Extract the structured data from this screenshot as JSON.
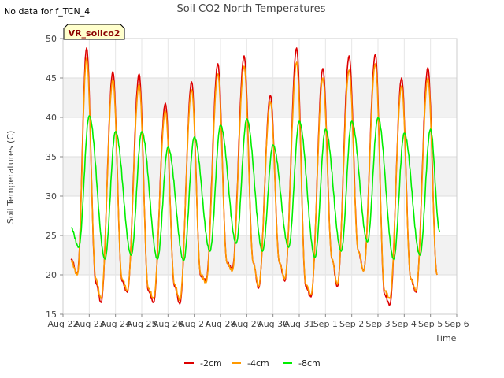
{
  "no_data_note": "No data for f_TCN_4",
  "site_label": "VR_soilco2",
  "chart_data": {
    "type": "line",
    "title": "Soil CO2 North Temperatures",
    "xlabel": "Time",
    "ylabel": "Soil Temperatures (C)",
    "ylim": [
      15,
      50
    ],
    "yticks": [
      15,
      20,
      25,
      30,
      35,
      40,
      45,
      50
    ],
    "xlim": [
      0,
      15
    ],
    "xticks": [
      0,
      1,
      2,
      3,
      4,
      5,
      6,
      7,
      8,
      9,
      10,
      11,
      12,
      13,
      14,
      15
    ],
    "xtick_labels": [
      "Aug 22",
      "Aug 23",
      "Aug 24",
      "Aug 25",
      "Aug 26",
      "Aug 27",
      "Aug 28",
      "Aug 29",
      "Aug 30",
      "Aug 31",
      "Sep 1",
      "Sep 2",
      "Sep 3",
      "Sep 4",
      "Sep 5",
      "Sep 6"
    ],
    "grid": true,
    "banded_background": true,
    "legend_position": "bottom-center",
    "series": [
      {
        "name": "-2cm",
        "color": "#dd0000",
        "x": [
          0.3,
          0.55,
          0.9,
          1.25,
          1.45,
          1.9,
          2.25,
          2.45,
          2.9,
          3.25,
          3.45,
          3.9,
          4.25,
          4.45,
          4.9,
          5.25,
          5.45,
          5.9,
          6.25,
          6.45,
          6.9,
          7.25,
          7.45,
          7.9,
          8.25,
          8.45,
          8.9,
          9.25,
          9.45,
          9.9,
          10.25,
          10.45,
          10.9,
          11.25,
          11.45,
          11.9,
          12.25,
          12.45,
          12.9,
          13.25,
          13.45,
          13.9,
          14.25
        ],
        "y": [
          22.0,
          20.2,
          48.8,
          19.0,
          16.5,
          45.8,
          19.2,
          17.8,
          45.5,
          18.0,
          16.5,
          41.8,
          18.5,
          16.3,
          44.5,
          19.8,
          19.3,
          46.8,
          21.5,
          20.8,
          47.8,
          21.5,
          18.3,
          42.8,
          21.5,
          19.2,
          48.8,
          18.5,
          17.2,
          46.2,
          22.0,
          18.5,
          47.8,
          23.0,
          20.5,
          48.0,
          17.5,
          16.2,
          45.0,
          19.5,
          17.8,
          46.3,
          20.0
        ]
      },
      {
        "name": "-4cm",
        "color": "#ff9900",
        "x": [
          0.3,
          0.55,
          0.9,
          1.25,
          1.45,
          1.9,
          2.25,
          2.45,
          2.9,
          3.25,
          3.45,
          3.9,
          4.25,
          4.45,
          4.9,
          5.25,
          5.45,
          5.9,
          6.25,
          6.45,
          6.9,
          7.25,
          7.45,
          7.9,
          8.25,
          8.45,
          8.9,
          9.25,
          9.45,
          9.9,
          10.25,
          10.45,
          10.9,
          11.25,
          11.45,
          11.9,
          12.25,
          12.45,
          12.9,
          13.25,
          13.45,
          13.9,
          14.25
        ],
        "y": [
          21.8,
          20.0,
          47.5,
          19.5,
          17.0,
          44.8,
          19.5,
          18.0,
          44.2,
          18.3,
          17.0,
          40.8,
          18.8,
          16.8,
          43.5,
          20.0,
          19.0,
          45.5,
          21.5,
          20.5,
          46.5,
          21.5,
          18.5,
          42.0,
          21.5,
          19.5,
          47.0,
          18.8,
          17.5,
          45.0,
          22.0,
          18.8,
          46.0,
          23.0,
          20.5,
          46.8,
          18.0,
          17.0,
          44.0,
          19.5,
          18.0,
          45.0,
          20.0
        ]
      },
      {
        "name": "-8cm",
        "color": "#00ee00",
        "x": [
          0.3,
          0.6,
          1.0,
          1.6,
          2.0,
          2.6,
          3.0,
          3.6,
          4.0,
          4.6,
          5.0,
          5.6,
          6.0,
          6.6,
          7.0,
          7.6,
          8.0,
          8.6,
          9.0,
          9.6,
          10.0,
          10.6,
          11.0,
          11.6,
          12.0,
          12.6,
          13.0,
          13.6,
          14.0,
          14.35
        ],
        "y": [
          26.0,
          23.5,
          40.2,
          22.0,
          38.2,
          22.5,
          38.2,
          22.0,
          36.2,
          21.8,
          37.5,
          23.0,
          39.0,
          24.0,
          39.8,
          23.0,
          36.5,
          23.5,
          39.5,
          22.2,
          38.5,
          23.0,
          39.5,
          24.2,
          40.0,
          22.0,
          38.0,
          22.5,
          38.5,
          25.5
        ]
      }
    ]
  }
}
